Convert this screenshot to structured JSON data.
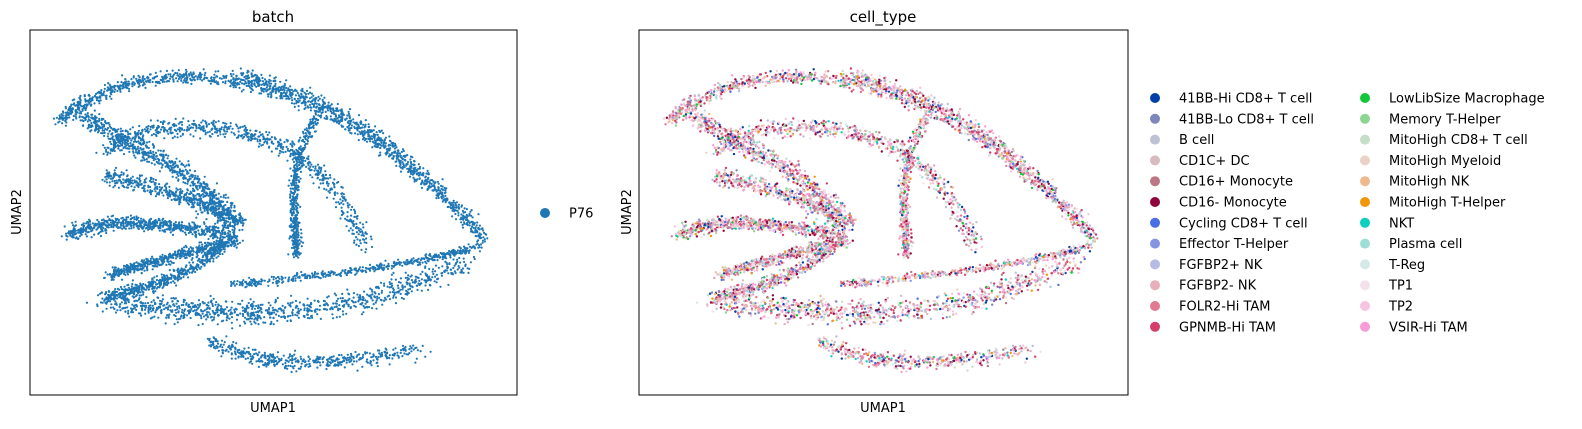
{
  "chart_data": [
    {
      "type": "scatter",
      "title": "batch",
      "xlabel": "UMAP1",
      "ylabel": "UMAP2",
      "ticks": "none",
      "legend_position": "right",
      "series": [
        {
          "name": "P76",
          "color": "#1f77b4"
        }
      ]
    },
    {
      "type": "scatter",
      "title": "cell_type",
      "xlabel": "UMAP1",
      "ylabel": "UMAP2",
      "ticks": "none",
      "legend_position": "right",
      "legend_columns": 2,
      "series": [
        {
          "name": "41BB-Hi CD8+ T cell",
          "color": "#023fa5"
        },
        {
          "name": "41BB-Lo CD8+ T cell",
          "color": "#7d87b9"
        },
        {
          "name": "B cell",
          "color": "#bec1d4"
        },
        {
          "name": "CD1C+ DC",
          "color": "#d6bcc0"
        },
        {
          "name": "CD16+ Monocyte",
          "color": "#bb7784"
        },
        {
          "name": "CD16- Monocyte",
          "color": "#8e063b"
        },
        {
          "name": "Cycling CD8+ T cell",
          "color": "#4a6fe3"
        },
        {
          "name": "Effector T-Helper",
          "color": "#8595e1"
        },
        {
          "name": "FGFBP2+ NK",
          "color": "#b5bbe3"
        },
        {
          "name": "FGFBP2- NK",
          "color": "#e6afb9"
        },
        {
          "name": "FOLR2-Hi TAM",
          "color": "#e07b91"
        },
        {
          "name": "GPNMB-Hi TAM",
          "color": "#d33f6a"
        },
        {
          "name": "LowLibSize Macrophage",
          "color": "#11c638"
        },
        {
          "name": "Memory T-Helper",
          "color": "#8dd593"
        },
        {
          "name": "MitoHigh CD8+ T cell",
          "color": "#c6dec7"
        },
        {
          "name": "MitoHigh Myeloid",
          "color": "#ead3c6"
        },
        {
          "name": "MitoHigh NK",
          "color": "#f0b98d"
        },
        {
          "name": "MitoHigh T-Helper",
          "color": "#ef9708"
        },
        {
          "name": "NKT",
          "color": "#0fcfc0"
        },
        {
          "name": "Plasma cell",
          "color": "#9cded6"
        },
        {
          "name": "T-Reg",
          "color": "#d5eae7"
        },
        {
          "name": "TP1",
          "color": "#f3e1eb"
        },
        {
          "name": "TP2",
          "color": "#f6c4e1"
        },
        {
          "name": "VSIR-Hi TAM",
          "color": "#f79cd4"
        }
      ]
    }
  ]
}
